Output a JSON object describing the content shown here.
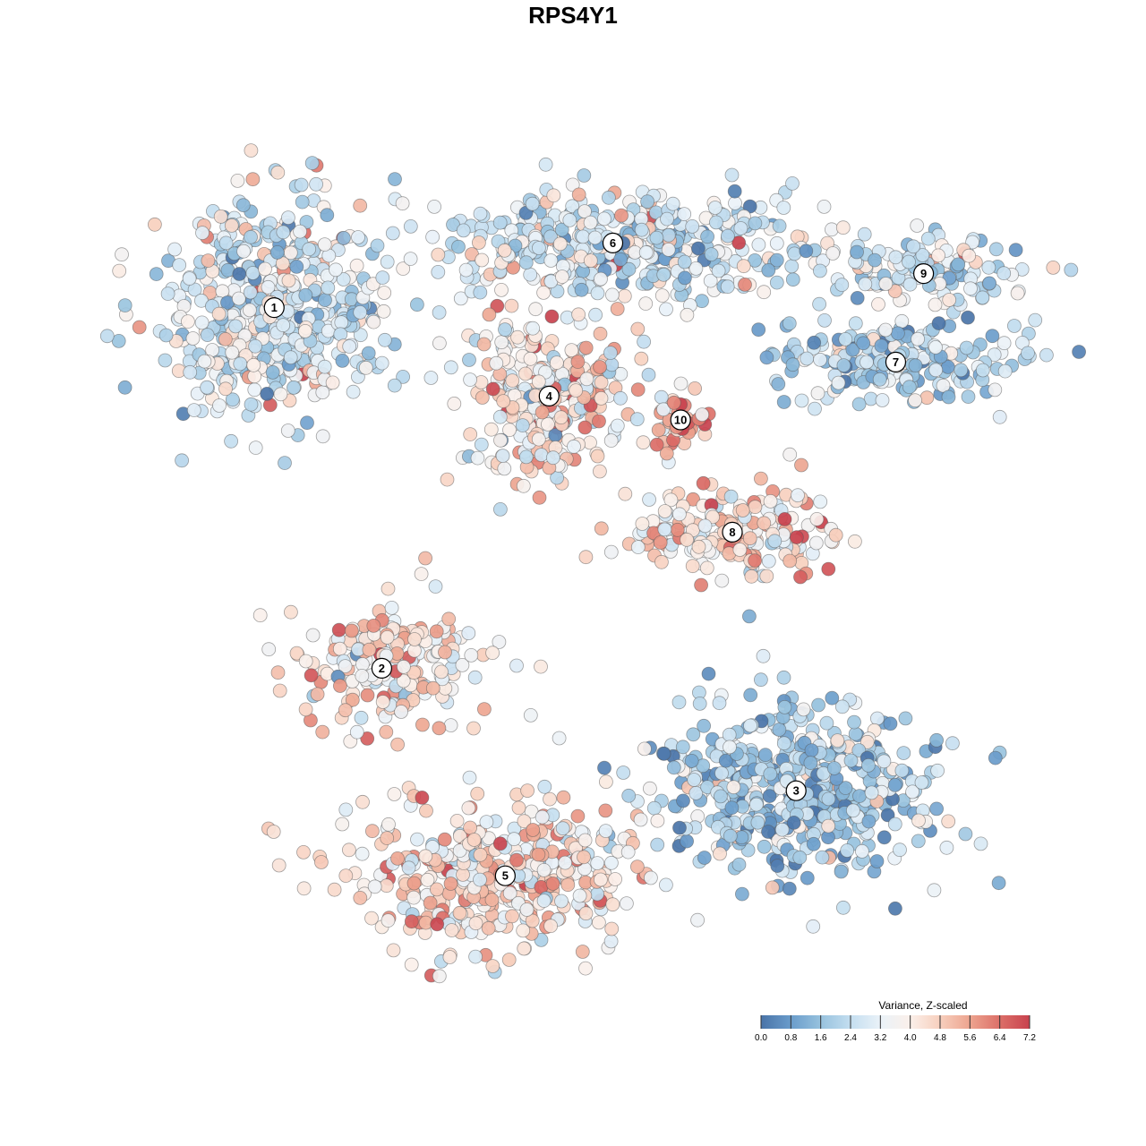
{
  "chart_data": {
    "type": "scatter",
    "title": "RPS4Y1",
    "xlabel": "",
    "ylabel": "",
    "grid": false,
    "axes_visible": false,
    "legend_placement": "bottom-right",
    "colorbar": {
      "title": "Variance, Z-scaled",
      "min": 0.0,
      "max": 7.2,
      "ticks": [
        "0.0",
        "0.8",
        "1.6",
        "2.4",
        "3.2",
        "4.0",
        "4.8",
        "5.6",
        "6.4",
        "7.2"
      ],
      "palette": [
        "#4a74a8",
        "#6a9ccb",
        "#97c2de",
        "#c4def0",
        "#eaf2f8",
        "#fbf0ea",
        "#f7cfbd",
        "#eda48f",
        "#dc6f68",
        "#c8424e"
      ]
    },
    "clusters": [
      {
        "label": "1",
        "x": -0.75,
        "y": 0.78,
        "mean_value": 2.8
      },
      {
        "label": "2",
        "x": -0.48,
        "y": -0.28,
        "mean_value": 4.1
      },
      {
        "label": "3",
        "x": 0.56,
        "y": -0.64,
        "mean_value": 1.9
      },
      {
        "label": "4",
        "x": -0.06,
        "y": 0.52,
        "mean_value": 3.9
      },
      {
        "label": "5",
        "x": -0.17,
        "y": -0.89,
        "mean_value": 4.2
      },
      {
        "label": "6",
        "x": 0.1,
        "y": 0.97,
        "mean_value": 2.7
      },
      {
        "label": "7",
        "x": 0.81,
        "y": 0.62,
        "mean_value": 2.0
      },
      {
        "label": "8",
        "x": 0.4,
        "y": 0.12,
        "mean_value": 4.3
      },
      {
        "label": "9",
        "x": 0.88,
        "y": 0.88,
        "mean_value": 2.8
      },
      {
        "label": "10",
        "x": 0.27,
        "y": 0.45,
        "mean_value": 5.2
      }
    ]
  }
}
